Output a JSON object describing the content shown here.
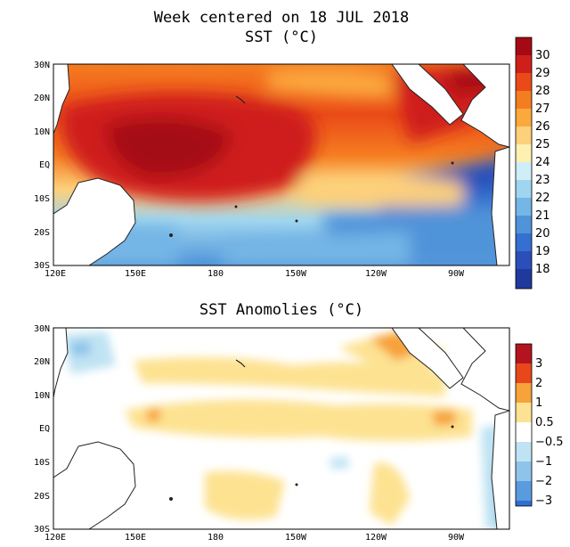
{
  "header": {
    "title_line1": "Week centered on 18 JUL 2018",
    "title_line2": "SST (°C)"
  },
  "panels": [
    {
      "title": "",
      "variable": "SST",
      "units": "°C",
      "lat_ticks": [
        "30N",
        "20N",
        "10N",
        "EQ",
        "10S",
        "20S",
        "30S"
      ],
      "lon_ticks": [
        "120E",
        "150E",
        "180",
        "150W",
        "120W",
        "90W"
      ],
      "colorbar": {
        "labels": [
          "30",
          "29",
          "28",
          "27",
          "26",
          "25",
          "24",
          "23",
          "22",
          "21",
          "20",
          "19",
          "18"
        ],
        "colors": [
          "#a50a14",
          "#cf1f1a",
          "#ea4a17",
          "#f57d21",
          "#fba83d",
          "#fdd07a",
          "#fdf0b0",
          "#cfeef7",
          "#9fd5ef",
          "#74b6e6",
          "#4f93d9",
          "#356fcf",
          "#2a4fb8",
          "#1f3a9c"
        ]
      }
    },
    {
      "title": "SST Anomolies (°C)",
      "variable": "SST Anomaly",
      "units": "°C",
      "lat_ticks": [
        "30N",
        "20N",
        "10N",
        "EQ",
        "10S",
        "20S",
        "30S"
      ],
      "lon_ticks": [
        "120E",
        "150E",
        "180",
        "150W",
        "120W",
        "90W"
      ],
      "colorbar": {
        "labels": [
          "3",
          "2",
          "1",
          "0.5",
          "−0.5",
          "−1",
          "−2",
          "−3"
        ],
        "colors": [
          "#b3141d",
          "#e8471b",
          "#f7a23a",
          "#fde291",
          "#ffffff",
          "#bfe3f3",
          "#8fc4ea",
          "#5a9be0",
          "#2f6fcf"
        ]
      }
    }
  ],
  "colors": {
    "land": "#ffffff",
    "coast": "#222222",
    "frame": "#000000"
  }
}
